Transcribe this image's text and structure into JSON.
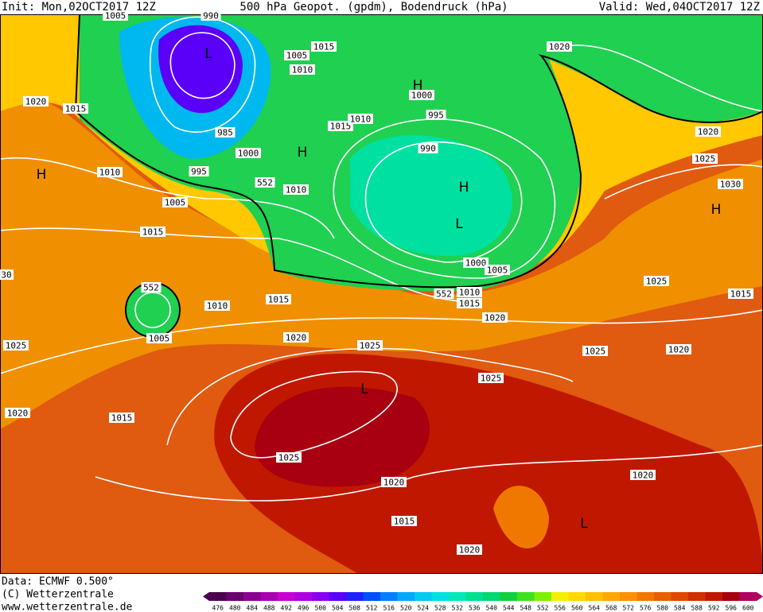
{
  "header": {
    "init": "Init: Mon,02OCT2017 12Z",
    "title": "500 hPa Geopot. (gpdm), Bodendruck (hPa)",
    "valid": "Valid: Wed,04OCT2017 12Z"
  },
  "footer": {
    "source": "Data: ECMWF   0.500°",
    "copyright": "(C) Wetterzentrale",
    "url": "www.wetterzentrale.de"
  },
  "isobar_labels": [
    "1005",
    "990",
    "1005",
    "1015",
    "1010",
    "1020",
    "1020",
    "1015",
    "1000",
    "995",
    "1015",
    "1010",
    "985",
    "1000",
    "990",
    "1020",
    "1025",
    "1010",
    "995",
    "552",
    "1010",
    "1030",
    "1005",
    "1015",
    "30",
    "1000",
    "1005",
    "1025",
    "552",
    "552",
    "1010",
    "1015",
    "1010",
    "1015",
    "1015",
    "1020",
    "1005",
    "1020",
    "1025",
    "1025",
    "1025",
    "1020",
    "1025",
    "1020",
    "1015",
    "1025",
    "1020",
    "1020",
    "1015",
    "1020"
  ],
  "pressure_centers": [
    "L",
    "H",
    "H",
    "H",
    "H",
    "L",
    "H",
    "L",
    "L"
  ],
  "legend": {
    "values": [
      476,
      480,
      484,
      488,
      492,
      496,
      500,
      504,
      508,
      512,
      516,
      520,
      524,
      528,
      532,
      536,
      540,
      544,
      548,
      552,
      556,
      560,
      564,
      568,
      572,
      576,
      580,
      584,
      588,
      592,
      596,
      600
    ],
    "colors": [
      "#4b0050",
      "#6a006f",
      "#8a0090",
      "#a800b0",
      "#c800d0",
      "#b000e0",
      "#8a00f0",
      "#5a00f8",
      "#2020ff",
      "#0050ff",
      "#0080ff",
      "#00a8ff",
      "#00c8f0",
      "#00e0e0",
      "#00e8b8",
      "#00e090",
      "#00d870",
      "#10d040",
      "#40e020",
      "#80f000",
      "#f0f000",
      "#ffd800",
      "#ffc000",
      "#ffa800",
      "#ff9000",
      "#f07800",
      "#e86000",
      "#e04800",
      "#d03000",
      "#c01800",
      "#a80010",
      "#b00060"
    ]
  }
}
